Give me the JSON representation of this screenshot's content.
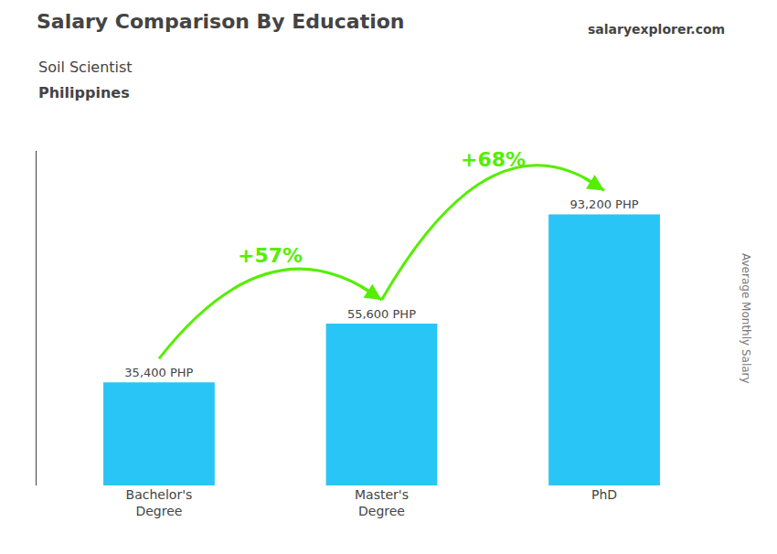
{
  "chart_data": {
    "type": "bar",
    "title": "Salary Comparison By Education",
    "subtitle": "Soil Scientist",
    "country": "Philippines",
    "categories": [
      "Bachelor's\nDegree",
      "Master's\nDegree",
      "PhD"
    ],
    "values": [
      35400,
      55600,
      93200
    ],
    "value_labels": [
      "35,400 PHP",
      "55,600 PHP",
      "93,200 PHP"
    ],
    "data_labels": true,
    "color": "#29C5F6",
    "ylim": [
      0,
      115000
    ],
    "grid": false,
    "tick_labels": "x",
    "y_label": "Average Monthly Salary",
    "annotations": [
      {
        "text": "+57%",
        "color": "#55EE00"
      },
      {
        "text": "+68%",
        "color": "#55EE00"
      }
    ],
    "website": [
      "salary",
      "explorer",
      ".com"
    ]
  }
}
